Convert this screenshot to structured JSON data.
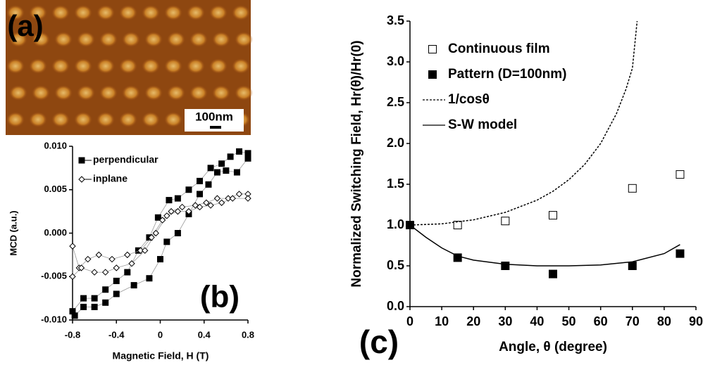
{
  "panel_a": {
    "label": "(a)",
    "scale_bar": "100nm"
  },
  "chart_data": [
    {
      "type": "scatter",
      "label": "(b)",
      "xlabel": "Magnetic Field, H (T)",
      "ylabel": "MCD (a.u.)",
      "xlim": [
        -0.8,
        0.8
      ],
      "xticks": [
        -0.8,
        -0.4,
        0,
        0.4,
        0.8
      ],
      "ylim": [
        -0.01,
        0.01
      ],
      "yticks": [
        {
          "value": -0.01,
          "label": "-0.010"
        },
        {
          "value": -0.005,
          "label": "-0.005"
        },
        {
          "value": 0,
          "label": "0.000"
        },
        {
          "value": 0.005,
          "label": "0.005"
        },
        {
          "value": 0.01,
          "label": "0.010"
        }
      ],
      "legend": "upper left",
      "series": [
        {
          "name": "perpendicular",
          "color": "#000000",
          "marker": "square-filled",
          "line_color": "#999999",
          "x": [
            0.8,
            0.72,
            0.64,
            0.56,
            0.46,
            0.36,
            0.26,
            0.16,
            0.08,
            -0.02,
            -0.1,
            -0.2,
            -0.3,
            -0.4,
            -0.5,
            -0.6,
            -0.7,
            -0.8,
            -0.78,
            -0.7,
            -0.6,
            -0.5,
            -0.4,
            -0.24,
            -0.1,
            0.0,
            0.06,
            0.16,
            0.26,
            0.36,
            0.44,
            0.52,
            0.6,
            0.7,
            0.8
          ],
          "values": [
            0.0092,
            0.0094,
            0.0088,
            0.008,
            0.0075,
            0.006,
            0.005,
            0.004,
            0.0038,
            0.0018,
            -0.0005,
            -0.002,
            -0.0045,
            -0.0055,
            -0.0065,
            -0.0075,
            -0.0075,
            -0.009,
            -0.0095,
            -0.0085,
            -0.0085,
            -0.008,
            -0.007,
            -0.006,
            -0.0052,
            -0.003,
            -0.001,
            0.0,
            0.0022,
            0.0045,
            0.0056,
            0.007,
            0.0072,
            0.007,
            0.0086
          ]
        },
        {
          "name": "inplane",
          "color": "#000000",
          "marker": "diamond-open",
          "line_color": "#999999",
          "x": [
            0.8,
            0.72,
            0.62,
            0.52,
            0.42,
            0.32,
            0.2,
            0.1,
            0.02,
            -0.08,
            -0.18,
            -0.3,
            -0.44,
            -0.56,
            -0.66,
            -0.74,
            -0.8,
            -0.8,
            -0.72,
            -0.6,
            -0.5,
            -0.4,
            -0.26,
            -0.14,
            -0.04,
            0.06,
            0.16,
            0.26,
            0.36,
            0.46,
            0.56,
            0.66,
            0.8
          ],
          "values": [
            0.0045,
            0.0045,
            0.004,
            0.004,
            0.0035,
            0.0032,
            0.003,
            0.0025,
            0.0015,
            -0.0005,
            -0.002,
            -0.0025,
            -0.003,
            -0.0025,
            -0.003,
            -0.004,
            -0.0015,
            -0.005,
            -0.004,
            -0.0045,
            -0.0045,
            -0.004,
            -0.0035,
            -0.002,
            0.0,
            0.002,
            0.0025,
            0.0025,
            0.003,
            0.0032,
            0.0035,
            0.004,
            0.004
          ]
        }
      ]
    },
    {
      "type": "scatter",
      "label": "(c)",
      "xlabel": "Angle, θ (degree)",
      "ylabel": "Normalized Switching Field, Hr(θ)/Hr(0)",
      "xlim": [
        0,
        90
      ],
      "xticks": [
        0,
        10,
        20,
        30,
        40,
        50,
        60,
        70,
        80,
        90
      ],
      "ylim": [
        0,
        3.5
      ],
      "yticks": [
        {
          "value": 0,
          "label": "0.0"
        },
        0.5,
        {
          "value": 1,
          "label": "1.0"
        },
        1.5,
        {
          "value": 2,
          "label": "2.0"
        },
        2.5,
        {
          "value": 3,
          "label": "3.0"
        },
        3.5
      ],
      "legend": "upper left",
      "series": [
        {
          "name": "Continuous film",
          "color": "#000000",
          "marker": "square-open",
          "x": [
            0,
            15,
            30,
            45,
            70,
            85
          ],
          "values": [
            1.0,
            1.0,
            1.05,
            1.12,
            1.45,
            1.62
          ]
        },
        {
          "name": "Pattern (D=100nm)",
          "color": "#000000",
          "marker": "square-filled",
          "x": [
            0,
            15,
            30,
            45,
            70,
            85
          ],
          "values": [
            1.0,
            0.6,
            0.5,
            0.4,
            0.5,
            0.65
          ]
        },
        {
          "name": "1/cosθ",
          "color": "#000000",
          "marker": "none",
          "linestyle": "dashed",
          "x": [
            0,
            10,
            20,
            30,
            40,
            45,
            50,
            55,
            60,
            65,
            68,
            70,
            71.5
          ],
          "values": [
            1.0,
            1.015,
            1.064,
            1.155,
            1.305,
            1.414,
            1.556,
            1.743,
            2.0,
            2.366,
            2.669,
            2.924,
            3.5
          ]
        },
        {
          "name": "S-W model",
          "color": "#000000",
          "marker": "none",
          "linestyle": "solid",
          "x": [
            0,
            5,
            10,
            15,
            20,
            30,
            40,
            50,
            60,
            70,
            80,
            85
          ],
          "values": [
            1.0,
            0.85,
            0.72,
            0.62,
            0.57,
            0.52,
            0.5,
            0.5,
            0.51,
            0.55,
            0.65,
            0.76
          ]
        }
      ]
    }
  ]
}
